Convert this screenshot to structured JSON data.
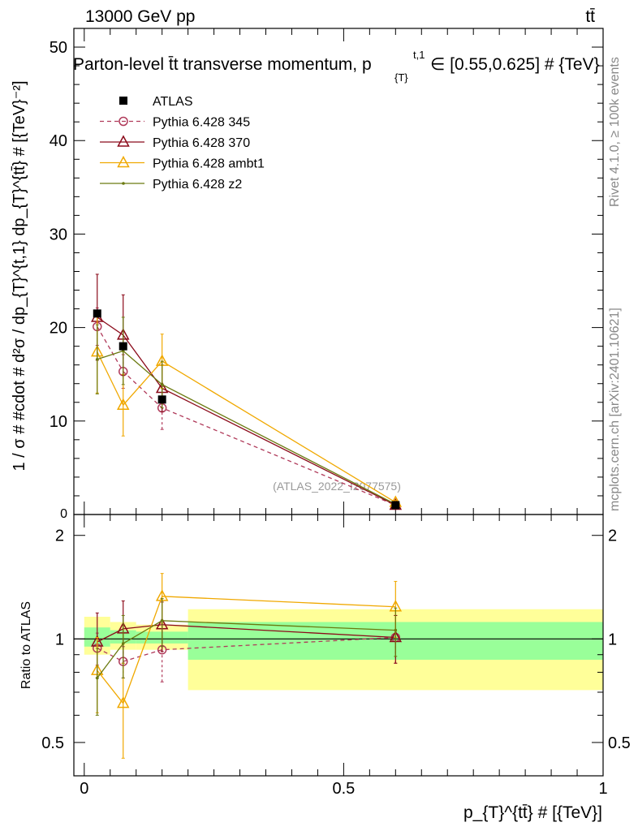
{
  "header": {
    "left_label": "13000 GeV pp",
    "right_label": "tt̄",
    "title": "Parton-level t̄t transverse momentum, p",
    "title_sub": "{T}",
    "title_sup": "t,1",
    "title_tail": "∈ [0.55,0.625] # {TeV}"
  },
  "side_labels": {
    "rivet": "Rivet 4.1.0, ≥ 100k events",
    "mcplots": "mcplots.cern.ch [arXiv:2401.10621]"
  },
  "watermark": "(ATLAS_2022_I2077575)",
  "ylabel_main": "1 / σ # #cdot # d²σ / dp_{T}^{t,1} dp_{T}^{tt̄} # [{TeV}⁻²]",
  "ylabel_ratio": "Ratio to ATLAS",
  "xlabel": "p_{T}^{tt̄} # [{TeV}]",
  "colors": {
    "atlas": "#000000",
    "p345": "#b03a5a",
    "p370": "#8b0a1a",
    "ambt1": "#f0a800",
    "z2": "#6b7a10",
    "band_inner": "#99ff99",
    "band_outer": "#ffff99"
  },
  "chart_data": {
    "type": "scatter",
    "x_edges": [
      0,
      0.05,
      0.1,
      0.2,
      1.0
    ],
    "x": [
      0.025,
      0.075,
      0.15,
      0.6
    ],
    "xlim": [
      -0.02,
      1.0
    ],
    "xticks": [
      "0",
      "0.5",
      "1"
    ],
    "xtick_values": [
      0,
      0.5,
      1
    ],
    "main": {
      "ylim": [
        0,
        52
      ],
      "yticks": [
        "10",
        "20",
        "30",
        "40",
        "50"
      ],
      "ytick_values": [
        10,
        20,
        30,
        40,
        50
      ],
      "ytick_zero": "0"
    },
    "ratio": {
      "ylim": [
        0.4,
        2.3
      ],
      "yticks": [
        "0.5",
        "1",
        "2"
      ],
      "ytick_values": [
        0.5,
        1,
        2
      ],
      "band_inner": [
        [
          0.95,
          1.08
        ],
        [
          0.97,
          1.06
        ],
        [
          0.97,
          1.05
        ],
        [
          0.87,
          1.12
        ]
      ],
      "band_outer": [
        [
          0.9,
          1.16
        ],
        [
          0.93,
          1.12
        ],
        [
          0.93,
          1.1
        ],
        [
          0.71,
          1.22
        ]
      ]
    },
    "legend": [
      "ATLAS",
      "Pythia 6.428 345",
      "Pythia 6.428 370",
      "Pythia 6.428 ambt1",
      "Pythia 6.428 z2"
    ],
    "series": [
      {
        "name": "ATLAS",
        "key": "atlas",
        "marker": "square",
        "values": [
          21.5,
          18.0,
          12.3,
          1.0
        ]
      },
      {
        "name": "Pythia 6.428 345",
        "key": "p345",
        "marker": "circle",
        "dashed": true,
        "values": [
          20.1,
          15.3,
          11.4,
          1.0
        ],
        "err": [
          2.0,
          1.8,
          2.3,
          0.15
        ],
        "ratio": [
          0.94,
          0.86,
          0.93,
          1.01
        ],
        "ratio_err": [
          0.1,
          0.09,
          0.18,
          0.16
        ]
      },
      {
        "name": "Pythia 6.428 370",
        "key": "p370",
        "marker": "triangle",
        "values": [
          21.1,
          19.2,
          13.5,
          1.0
        ],
        "err": [
          4.6,
          4.3,
          2.5,
          0.15
        ],
        "ratio": [
          0.98,
          1.07,
          1.1,
          1.01
        ],
        "ratio_err": [
          0.21,
          0.22,
          0.18,
          0.16
        ]
      },
      {
        "name": "Pythia 6.428 ambt1",
        "key": "ambt1",
        "marker": "triangle",
        "values": [
          17.4,
          11.7,
          16.4,
          1.3
        ],
        "err": [
          4.4,
          3.3,
          2.9,
          0.2
        ],
        "ratio": [
          0.81,
          0.65,
          1.33,
          1.24
        ],
        "ratio_err": [
          0.2,
          0.2,
          0.22,
          0.23
        ]
      },
      {
        "name": "Pythia 6.428 z2",
        "key": "z2",
        "marker": "dot",
        "values": [
          16.6,
          17.5,
          13.9,
          1.1
        ],
        "err": [
          3.7,
          3.6,
          2.5,
          0.15
        ],
        "ratio": [
          0.77,
          0.97,
          1.13,
          1.06
        ],
        "ratio_err": [
          0.17,
          0.2,
          0.18,
          0.17
        ]
      }
    ]
  }
}
